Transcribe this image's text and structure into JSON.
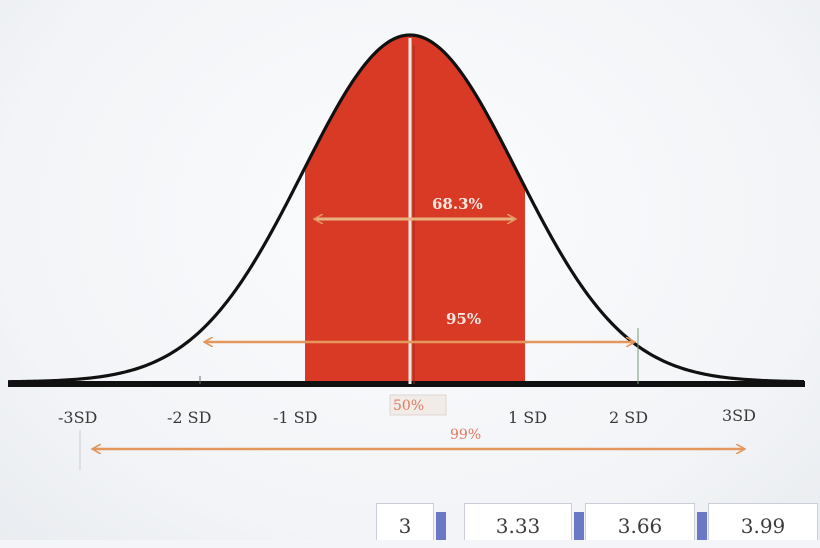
{
  "sd_axis": {
    "labels": [
      "-3SD",
      "-2 SD",
      "-1 SD",
      "1 SD",
      "2 SD",
      "3SD"
    ]
  },
  "percentages": {
    "one_sd": "68.3%",
    "two_sd": "95%",
    "three_sd": "99%",
    "mean": "50%"
  },
  "value_boxes": [
    "3",
    "3.33",
    "3.66",
    "3.99"
  ],
  "colors": {
    "shaded_region": "#d83a26",
    "curve": "#111111",
    "arrows": "#e3975d",
    "axis": "#111111"
  }
}
